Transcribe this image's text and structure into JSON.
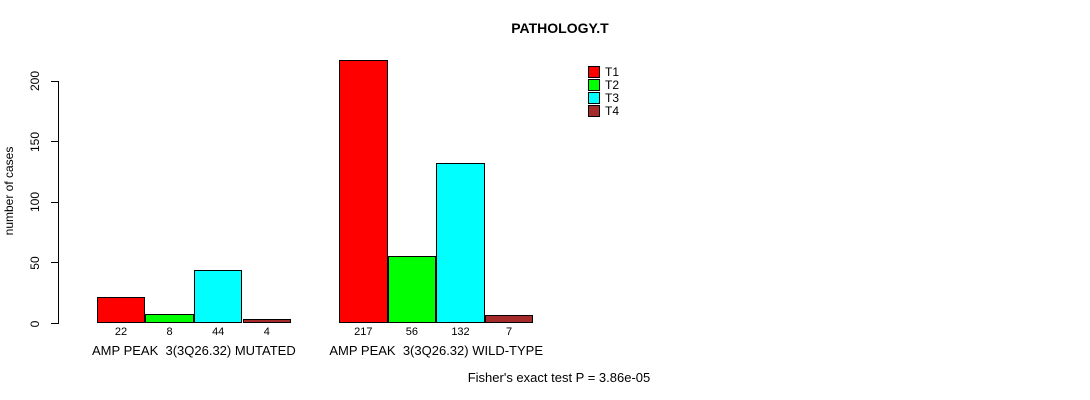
{
  "title": "PATHOLOGY.T",
  "footnote": "Fisher's exact test P = 3.86e-05",
  "chart_data": {
    "type": "bar",
    "title": "PATHOLOGY.T",
    "xlabel": "",
    "ylabel": "number of cases",
    "ylim": [
      0,
      225
    ],
    "yticks": [
      0,
      50,
      100,
      150,
      200
    ],
    "grid": false,
    "legend_position": "top-right",
    "categories": [
      "AMP PEAK  3(3Q26.32) MUTATED",
      "AMP PEAK  3(3Q26.32) WILD-TYPE"
    ],
    "series": [
      {
        "name": "T1",
        "color": "#ff0000",
        "values": [
          22,
          217
        ]
      },
      {
        "name": "T2",
        "color": "#00ff00",
        "values": [
          8,
          56
        ]
      },
      {
        "name": "T3",
        "color": "#00ffff",
        "values": [
          44,
          132
        ]
      },
      {
        "name": "T4",
        "color": "#a52a2a",
        "values": [
          4,
          7
        ]
      }
    ],
    "show_values": true,
    "annotation": "Fisher's exact test P = 3.86e-05"
  }
}
